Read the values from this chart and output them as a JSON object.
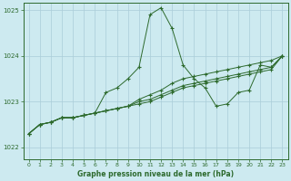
{
  "xlabel": "Graphe pression niveau de la mer (hPa)",
  "background_color": "#cdeaf0",
  "grid_color": "#aacdd8",
  "line_color": "#2d6a2d",
  "ylim": [
    1021.75,
    1025.15
  ],
  "xlim": [
    -0.5,
    23.5
  ],
  "xticks": [
    0,
    1,
    2,
    3,
    4,
    5,
    6,
    7,
    8,
    9,
    10,
    11,
    12,
    13,
    14,
    15,
    16,
    17,
    18,
    19,
    20,
    21,
    22,
    23
  ],
  "yticks": [
    1022,
    1023,
    1024,
    1025
  ],
  "series": [
    [
      1022.3,
      1022.5,
      1022.55,
      1022.65,
      1022.65,
      1022.7,
      1022.75,
      1023.2,
      1023.3,
      1023.5,
      1023.75,
      1024.9,
      1025.05,
      1024.6,
      1023.8,
      1023.5,
      1023.3,
      1022.9,
      1022.95,
      1023.2,
      1023.25,
      1023.8,
      1023.75,
      1024.0
    ],
    [
      1022.3,
      1022.5,
      1022.55,
      1022.65,
      1022.65,
      1022.7,
      1022.75,
      1022.8,
      1022.85,
      1022.9,
      1023.05,
      1023.15,
      1023.25,
      1023.4,
      1023.5,
      1023.55,
      1023.6,
      1023.65,
      1023.7,
      1023.75,
      1023.8,
      1023.85,
      1023.9,
      1024.0
    ],
    [
      1022.3,
      1022.5,
      1022.55,
      1022.65,
      1022.65,
      1022.7,
      1022.75,
      1022.8,
      1022.85,
      1022.9,
      1023.0,
      1023.05,
      1023.15,
      1023.25,
      1023.35,
      1023.4,
      1023.45,
      1023.5,
      1023.55,
      1023.6,
      1023.65,
      1023.7,
      1023.75,
      1024.0
    ],
    [
      1022.3,
      1022.5,
      1022.55,
      1022.65,
      1022.65,
      1022.7,
      1022.75,
      1022.8,
      1022.85,
      1022.9,
      1022.95,
      1023.0,
      1023.1,
      1023.2,
      1023.3,
      1023.35,
      1023.4,
      1023.45,
      1023.5,
      1023.55,
      1023.6,
      1023.65,
      1023.7,
      1024.0
    ]
  ]
}
